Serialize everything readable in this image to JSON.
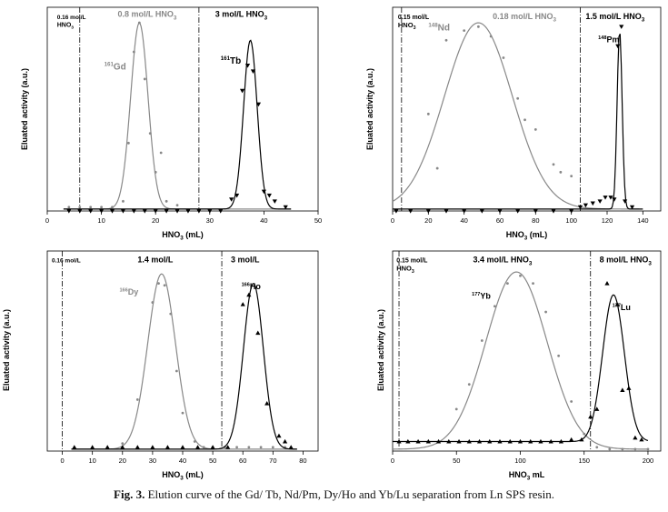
{
  "caption": {
    "label": "Fig. 3.",
    "text": "Elution curve of the Gd/ Tb, Nd/Pm, Dy/Ho and Yb/Lu separation from Ln SPS resin."
  },
  "colors": {
    "gray": "#888888",
    "black": "#000000",
    "frame": "#000000"
  },
  "chart_data": [
    {
      "type": "line",
      "title": "Gd/Tb",
      "xlabel": "HNO3 (mL)",
      "ylabel": "Eluated activity (a.u.)",
      "xlim": [
        0,
        50
      ],
      "ylim": [
        0,
        1.05
      ],
      "xticks": [
        0,
        10,
        20,
        30,
        40,
        50
      ],
      "annotations": [
        {
          "text": "0.16 mol/L",
          "text2": "HNO3",
          "x": 1.8,
          "y": 0.99,
          "color": "black",
          "size": 6.5
        },
        {
          "text": "0.8 mol/L  HNO3",
          "x": 13,
          "y": 1.0,
          "color": "gray",
          "size": 9
        },
        {
          "text": "3 mol/L  HNO3",
          "x": 31,
          "y": 1.0,
          "color": "black",
          "size": 9
        },
        {
          "text": "161Gd",
          "x": 10.5,
          "y": 0.73,
          "color": "gray",
          "size": 10
        },
        {
          "text": "161Tb",
          "x": 32,
          "y": 0.76,
          "color": "black",
          "size": 10
        }
      ],
      "dividers": [
        6,
        28
      ],
      "series": [
        {
          "name": "161Gd",
          "color": "gray",
          "curve": {
            "type": "gauss",
            "base": 0.01,
            "amp": 0.96,
            "center": 17,
            "sigma": 1.6,
            "range": [
              3,
              45
            ]
          },
          "markers": "dot",
          "points": [
            [
              4,
              0.02
            ],
            [
              6,
              0.02
            ],
            [
              8,
              0.02
            ],
            [
              10,
              0.02
            ],
            [
              12,
              0.02
            ],
            [
              14,
              0.05
            ],
            [
              15,
              0.35
            ],
            [
              16,
              0.82
            ],
            [
              17,
              0.97
            ],
            [
              18,
              0.68
            ],
            [
              19,
              0.4
            ],
            [
              20,
              0.2
            ],
            [
              21,
              0.3
            ],
            [
              22,
              0.05
            ],
            [
              24,
              0.03
            ]
          ]
        },
        {
          "name": "161Tb",
          "color": "black",
          "curve": {
            "type": "gauss",
            "base": 0.01,
            "amp": 0.87,
            "center": 37.5,
            "sigma": 1.25,
            "range": [
              3,
              45
            ]
          },
          "markers": "tri-down",
          "points": [
            [
              4,
              0
            ],
            [
              6,
              0
            ],
            [
              8,
              0
            ],
            [
              10,
              0
            ],
            [
              12,
              0
            ],
            [
              14,
              0
            ],
            [
              16,
              0
            ],
            [
              18,
              0
            ],
            [
              20,
              0
            ],
            [
              22,
              0
            ],
            [
              24,
              0
            ],
            [
              26,
              0
            ],
            [
              28,
              0
            ],
            [
              30,
              0
            ],
            [
              32,
              0
            ],
            [
              34,
              0.06
            ],
            [
              35,
              0.08
            ],
            [
              36,
              0.62
            ],
            [
              37,
              0.75
            ],
            [
              38,
              0.72
            ],
            [
              39,
              0.55
            ],
            [
              40,
              0.1
            ],
            [
              41,
              0.08
            ],
            [
              42,
              0.05
            ],
            [
              44,
              0.02
            ]
          ]
        }
      ]
    },
    {
      "type": "line",
      "title": "Nd/Pm",
      "xlabel": "HNO3 (mL)",
      "ylabel": "Eluated activity (a.u.)",
      "xlim": [
        0,
        150
      ],
      "ylim": [
        0,
        1.05
      ],
      "xticks": [
        0,
        20,
        40,
        60,
        80,
        100,
        120,
        140
      ],
      "annotations": [
        {
          "text": "0.15 mol/L",
          "text2": "HNO3",
          "x": 3,
          "y": 0.99,
          "color": "black",
          "size": 7
        },
        {
          "text": "148Nd",
          "x": 20,
          "y": 0.93,
          "color": "gray",
          "size": 10
        },
        {
          "text": "0.18  mol/L HNO3",
          "x": 56,
          "y": 0.99,
          "color": "gray",
          "size": 9
        },
        {
          "text": "1.5 mol/L HNO3",
          "x": 108,
          "y": 0.99,
          "color": "black",
          "size": 9
        },
        {
          "text": "148Pm",
          "x": 115,
          "y": 0.87,
          "color": "black",
          "size": 9
        }
      ],
      "dividers": [
        5,
        105
      ],
      "series": [
        {
          "name": "148Nd",
          "color": "gray",
          "curve": {
            "type": "gauss",
            "base": 0.01,
            "amp": 0.96,
            "center": 48,
            "sigma": 19,
            "range": [
              0,
              138
            ]
          },
          "markers": "dot",
          "points": [
            [
              20,
              0.5
            ],
            [
              25,
              0.22
            ],
            [
              30,
              0.88
            ],
            [
              40,
              0.93
            ],
            [
              48,
              0.95
            ],
            [
              55,
              0.9
            ],
            [
              62,
              0.79
            ],
            [
              70,
              0.58
            ],
            [
              74,
              0.47
            ],
            [
              80,
              0.42
            ],
            [
              90,
              0.24
            ],
            [
              94,
              0.2
            ],
            [
              100,
              0.18
            ]
          ]
        },
        {
          "name": "148Pm",
          "color": "black",
          "curve": {
            "type": "gauss",
            "base": 0.01,
            "amp": 0.92,
            "center": 127,
            "sigma": 1.4,
            "range": [
              0,
              140
            ]
          },
          "markers": "tri-down",
          "points": [
            [
              2,
              0
            ],
            [
              10,
              0
            ],
            [
              20,
              0
            ],
            [
              30,
              0
            ],
            [
              40,
              0
            ],
            [
              50,
              0
            ],
            [
              60,
              0
            ],
            [
              70,
              0
            ],
            [
              80,
              0
            ],
            [
              90,
              0
            ],
            [
              100,
              0
            ],
            [
              105,
              0.02
            ],
            [
              108,
              0.03
            ],
            [
              112,
              0.04
            ],
            [
              116,
              0.05
            ],
            [
              119,
              0.07
            ],
            [
              122,
              0.07
            ],
            [
              124,
              0.06
            ],
            [
              126,
              0.85
            ],
            [
              128,
              0.95
            ],
            [
              130,
              0.05
            ],
            [
              134,
              0.02
            ]
          ]
        }
      ]
    },
    {
      "type": "line",
      "title": "Dy/Ho",
      "xlabel": "HNO3 (mL)",
      "ylabel": "Eluated activity (a.u.)",
      "xlim": [
        -5,
        85
      ],
      "ylim": [
        0,
        1.05
      ],
      "xticks": [
        0,
        10,
        20,
        30,
        40,
        50,
        60,
        70,
        80
      ],
      "annotations": [
        {
          "text": "0.16 mol/L",
          "x": -3.5,
          "y": 0.99,
          "color": "black",
          "size": 6.5
        },
        {
          "text": "1.4 mol/L",
          "x": 25,
          "y": 0.99,
          "color": "black",
          "size": 9
        },
        {
          "text": "3 mol/L",
          "x": 56,
          "y": 0.99,
          "color": "black",
          "size": 9
        },
        {
          "text": "166Dy",
          "x": 19,
          "y": 0.82,
          "color": "gray",
          "size": 9
        },
        {
          "text": "166Ho",
          "x": 59.5,
          "y": 0.85,
          "color": "black",
          "size": 9
        }
      ],
      "dividers": [
        0,
        53
      ],
      "series": [
        {
          "name": "166Dy",
          "color": "gray",
          "curve": {
            "type": "gauss",
            "base": 0.01,
            "amp": 0.92,
            "center": 33,
            "sigma": 4.6,
            "range": [
              3,
              78
            ]
          },
          "markers": "dot",
          "points": [
            [
              20,
              0.04
            ],
            [
              25,
              0.27
            ],
            [
              30,
              0.78
            ],
            [
              32,
              0.88
            ],
            [
              34,
              0.87
            ],
            [
              36,
              0.72
            ],
            [
              38,
              0.42
            ],
            [
              40,
              0.2
            ],
            [
              44,
              0.05
            ],
            [
              47,
              0.02
            ],
            [
              50,
              0.02
            ],
            [
              54,
              0.02
            ],
            [
              58,
              0.02
            ],
            [
              62,
              0.02
            ],
            [
              66,
              0.02
            ],
            [
              70,
              0.02
            ],
            [
              74,
              0.02
            ]
          ]
        },
        {
          "name": "166Ho",
          "color": "black",
          "curve": {
            "type": "gauss",
            "base": 0.01,
            "amp": 0.87,
            "center": 63.5,
            "sigma": 3.3,
            "range": [
              3,
              78
            ]
          },
          "markers": "tri-up",
          "points": [
            [
              4,
              0.02
            ],
            [
              10,
              0.02
            ],
            [
              15,
              0.02
            ],
            [
              20,
              0.02
            ],
            [
              25,
              0.02
            ],
            [
              30,
              0.02
            ],
            [
              35,
              0.02
            ],
            [
              40,
              0.02
            ],
            [
              45,
              0.02
            ],
            [
              50,
              0.02
            ],
            [
              55,
              0.02
            ],
            [
              60,
              0.77
            ],
            [
              62,
              0.82
            ],
            [
              65,
              0.62
            ],
            [
              68,
              0.25
            ],
            [
              72,
              0.08
            ],
            [
              74,
              0.05
            ],
            [
              76,
              0.02
            ]
          ]
        }
      ]
    },
    {
      "type": "line",
      "title": "Yb/Lu",
      "xlabel": "HNO3 mL",
      "ylabel": "Eluated activity (a.u.)",
      "xlim": [
        0,
        210
      ],
      "ylim": [
        0,
        1.05
      ],
      "xticks": [
        0,
        50,
        100,
        150,
        200
      ],
      "annotations": [
        {
          "text": "0.15 mol/L",
          "text2": "HNO3",
          "x": 3,
          "y": 0.99,
          "color": "black",
          "size": 7
        },
        {
          "text": "3.4 mol/L HNO3",
          "x": 63,
          "y": 0.99,
          "color": "black",
          "size": 9
        },
        {
          "text": "8 mol/L HNO3",
          "x": 162,
          "y": 0.99,
          "color": "black",
          "size": 9
        },
        {
          "text": "177Yb",
          "x": 62,
          "y": 0.8,
          "color": "black",
          "size": 9
        },
        {
          "text": "177Lu",
          "x": 172,
          "y": 0.74,
          "color": "black",
          "size": 9
        }
      ],
      "dividers": [
        5,
        155
      ],
      "series": [
        {
          "name": "177Yb",
          "color": "gray",
          "curve": {
            "type": "gauss",
            "base": 0.01,
            "amp": 0.93,
            "center": 97,
            "sigma": 24,
            "range": [
              0,
              200
            ]
          },
          "markers": "dot",
          "points": [
            [
              50,
              0.22
            ],
            [
              60,
              0.35
            ],
            [
              70,
              0.58
            ],
            [
              80,
              0.76
            ],
            [
              90,
              0.88
            ],
            [
              100,
              0.92
            ],
            [
              110,
              0.88
            ],
            [
              120,
              0.73
            ],
            [
              130,
              0.5
            ],
            [
              140,
              0.26
            ],
            [
              150,
              0.09
            ],
            [
              160,
              0.02
            ],
            [
              170,
              0.01
            ],
            [
              180,
              0.01
            ],
            [
              190,
              0.01
            ],
            [
              200,
              0.01
            ]
          ]
        },
        {
          "name": "177Lu",
          "color": "black",
          "curve": {
            "type": "gauss",
            "base": 0.05,
            "amp": 0.77,
            "center": 173,
            "sigma": 8.5,
            "range": [
              0,
              200
            ]
          },
          "markers": "tri-up",
          "points": [
            [
              5,
              0.05
            ],
            [
              12,
              0.05
            ],
            [
              20,
              0.05
            ],
            [
              28,
              0.05
            ],
            [
              36,
              0.05
            ],
            [
              44,
              0.05
            ],
            [
              52,
              0.05
            ],
            [
              60,
              0.05
            ],
            [
              68,
              0.05
            ],
            [
              76,
              0.05
            ],
            [
              84,
              0.05
            ],
            [
              92,
              0.05
            ],
            [
              100,
              0.05
            ],
            [
              108,
              0.05
            ],
            [
              116,
              0.05
            ],
            [
              124,
              0.05
            ],
            [
              132,
              0.05
            ],
            [
              140,
              0.06
            ],
            [
              148,
              0.06
            ],
            [
              155,
              0.18
            ],
            [
              160,
              0.22
            ],
            [
              168,
              0.88
            ],
            [
              176,
              0.77
            ],
            [
              180,
              0.32
            ],
            [
              185,
              0.33
            ],
            [
              190,
              0.07
            ],
            [
              195,
              0.06
            ]
          ]
        }
      ]
    }
  ]
}
